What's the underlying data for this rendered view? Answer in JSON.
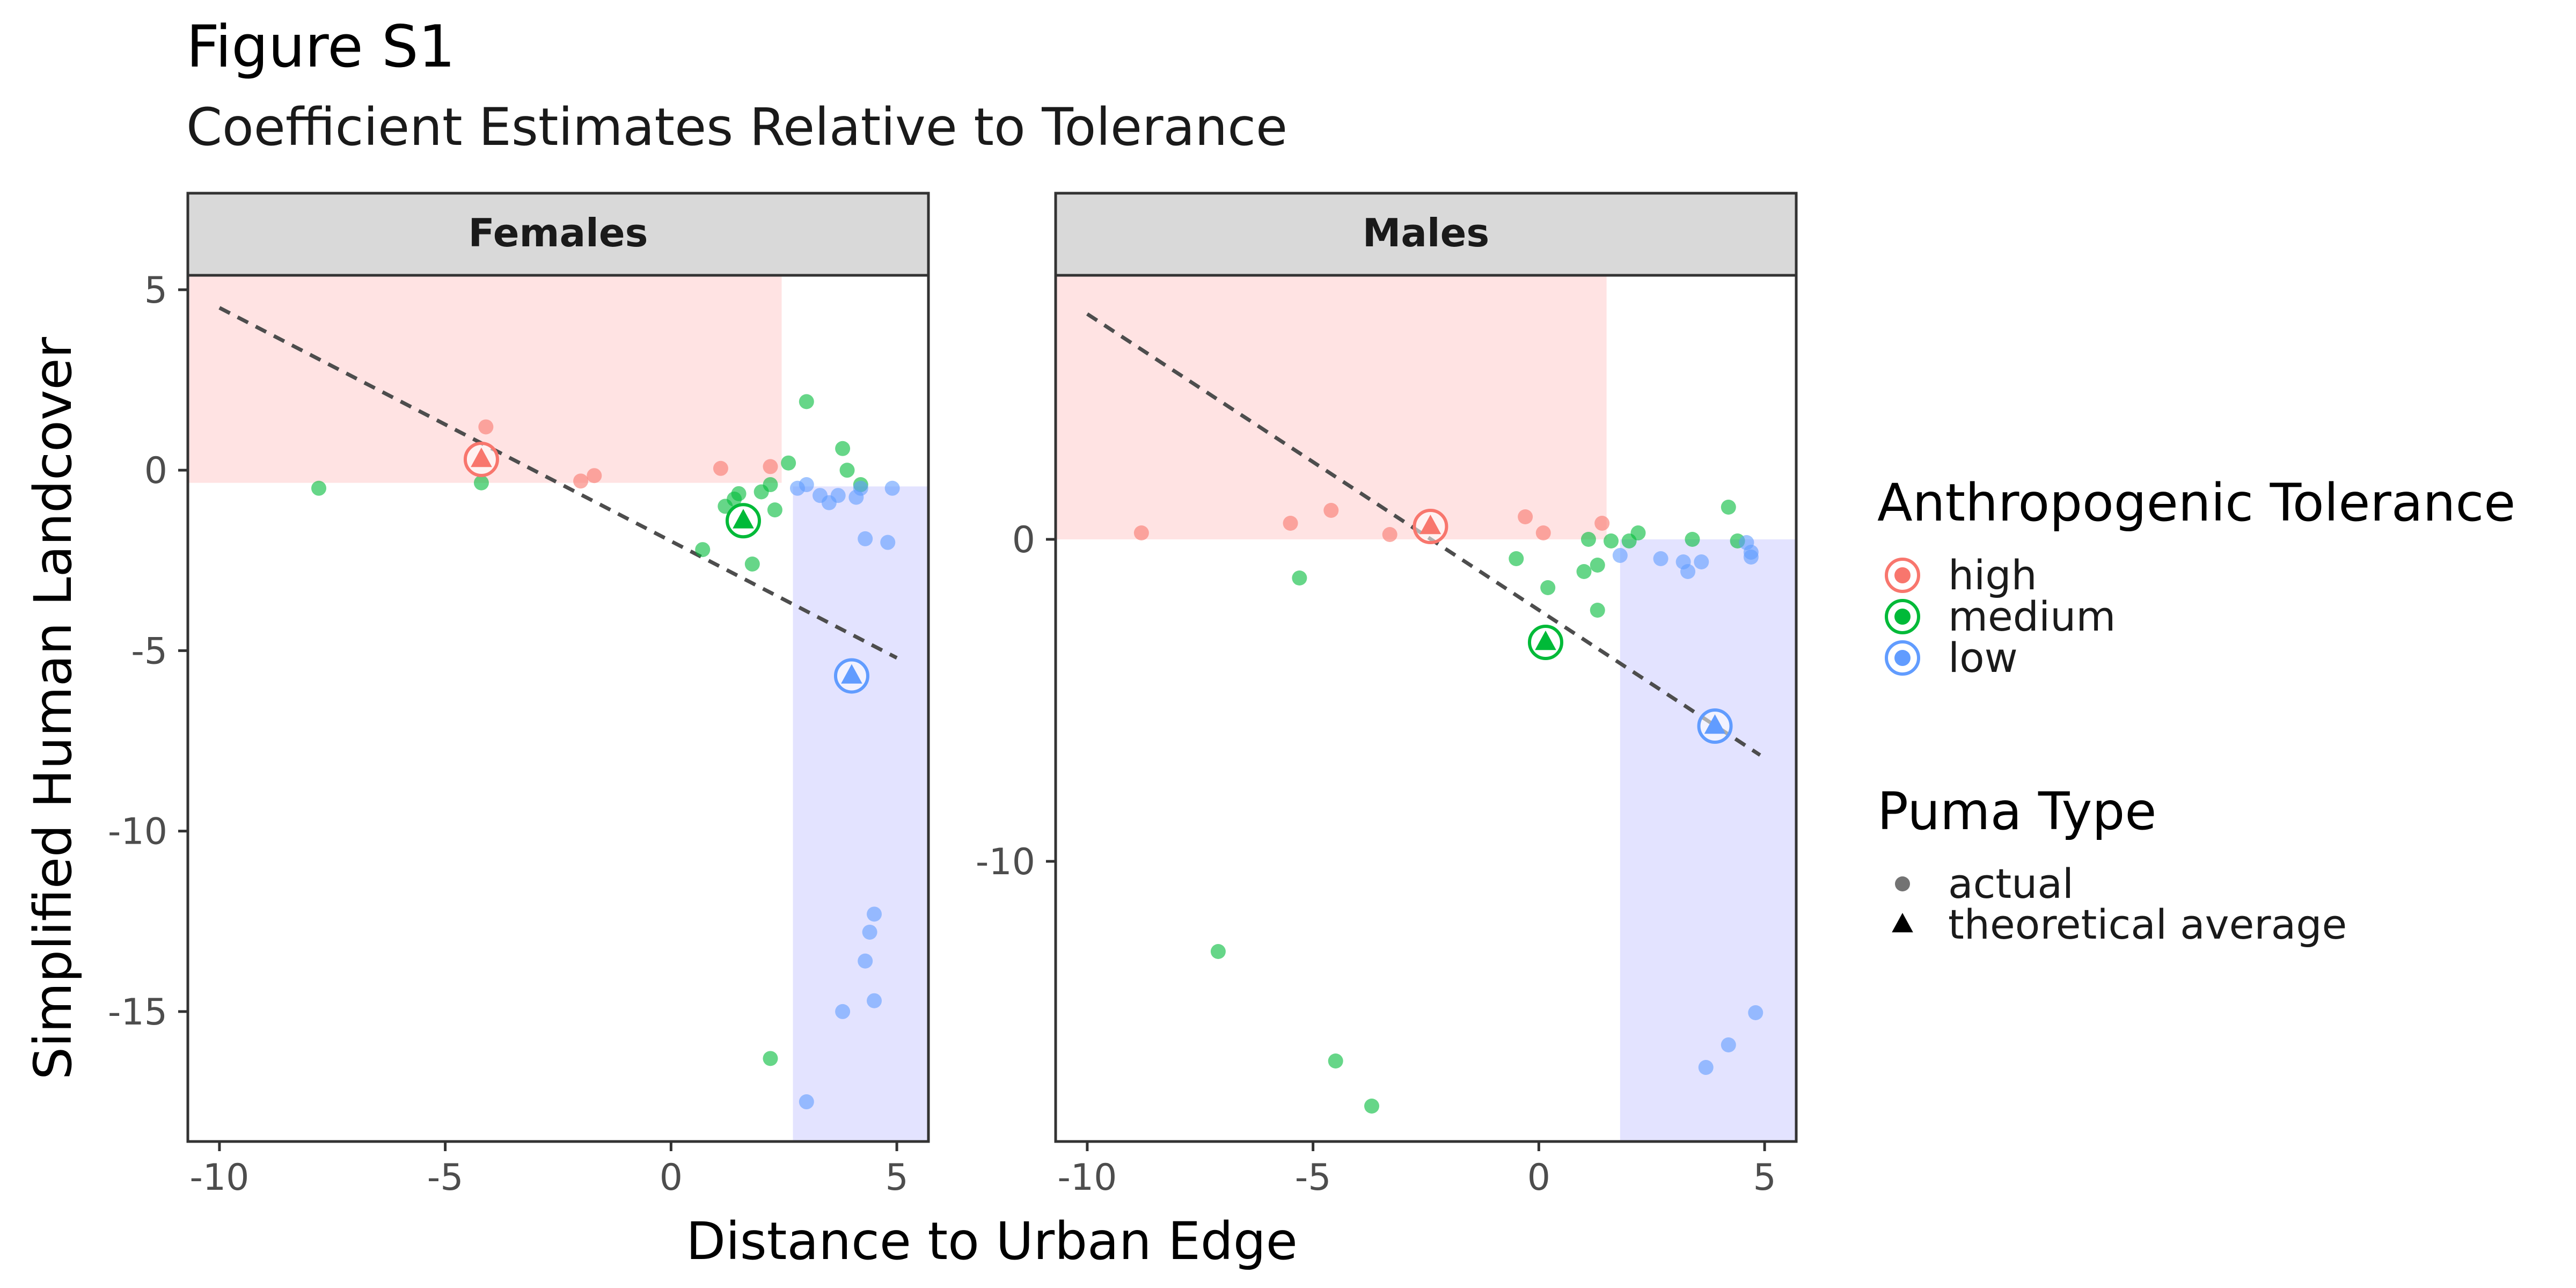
{
  "title": "Figure S1",
  "subtitle": "Coefficient Estimates Relative to Tolerance",
  "xlabel": "Distance to Urban Edge",
  "ylabel": "Simplified Human Landcover",
  "legend": {
    "tolerance_title": "Anthropogenic Tolerance",
    "tolerance_items": [
      "high",
      "medium",
      "low"
    ],
    "puma_title": "Puma Type",
    "puma_items": [
      "actual",
      "theoretical average"
    ]
  },
  "colors": {
    "high": "#F8766D",
    "medium": "#00BA38",
    "low": "#619CFF",
    "high_zone": "#FFE3E3",
    "low_zone": "#E3E3FF",
    "strip": "#D9D9D9",
    "trend": "#4D4D4D"
  },
  "chart_data": [
    {
      "type": "scatter",
      "panel": "Females",
      "xlim": [
        -10.7,
        5.7
      ],
      "ylim": [
        -18.6,
        5.4
      ],
      "xticks": [
        -10,
        -5,
        0,
        5
      ],
      "xtick_labels": [
        "-10",
        "-5",
        "0",
        "5"
      ],
      "yticks": [
        5,
        0,
        -5,
        -10,
        -15
      ],
      "ytick_labels": [
        "5",
        "0",
        "-5",
        "-10",
        "-15"
      ],
      "zones": {
        "high": {
          "x": [
            -10.7,
            2.45
          ],
          "y": [
            -0.35,
            5.4
          ]
        },
        "low": {
          "x": [
            2.7,
            5.7
          ],
          "y": [
            -18.6,
            -0.45
          ]
        }
      },
      "trend": {
        "x": [
          -10,
          5
        ],
        "y": [
          4.5,
          -5.2
        ]
      },
      "series": [
        {
          "name": "high",
          "points": [
            [
              -4.1,
              1.2
            ],
            [
              -2.0,
              -0.3
            ],
            [
              -1.7,
              -0.15
            ],
            [
              1.1,
              0.05
            ],
            [
              2.2,
              0.1
            ]
          ]
        },
        {
          "name": "medium",
          "points": [
            [
              -7.8,
              -0.5
            ],
            [
              -4.2,
              -0.35
            ],
            [
              0.7,
              -2.2
            ],
            [
              1.2,
              -1.0
            ],
            [
              1.4,
              -0.8
            ],
            [
              1.5,
              -0.65
            ],
            [
              1.8,
              -2.6
            ],
            [
              2.0,
              -0.6
            ],
            [
              2.2,
              -0.4
            ],
            [
              2.3,
              -1.1
            ],
            [
              2.6,
              0.2
            ],
            [
              3.0,
              1.9
            ],
            [
              3.8,
              0.6
            ],
            [
              3.9,
              0.0
            ],
            [
              4.2,
              -0.4
            ],
            [
              2.2,
              -16.3
            ]
          ]
        },
        {
          "name": "low",
          "points": [
            [
              2.8,
              -0.5
            ],
            [
              3.0,
              -0.4
            ],
            [
              3.3,
              -0.7
            ],
            [
              3.5,
              -0.9
            ],
            [
              3.7,
              -0.7
            ],
            [
              4.1,
              -0.75
            ],
            [
              4.2,
              -0.5
            ],
            [
              4.3,
              -1.9
            ],
            [
              4.8,
              -2.0
            ],
            [
              4.9,
              -0.5
            ],
            [
              4.5,
              -12.3
            ],
            [
              4.4,
              -12.8
            ],
            [
              4.3,
              -13.6
            ],
            [
              4.5,
              -14.7
            ],
            [
              3.8,
              -15.0
            ],
            [
              3.0,
              -17.5
            ]
          ]
        }
      ],
      "averages": [
        {
          "name": "high",
          "x": -4.2,
          "y": 0.3
        },
        {
          "name": "medium",
          "x": 1.6,
          "y": -1.4
        },
        {
          "name": "low",
          "x": 4.0,
          "y": -5.7
        }
      ]
    },
    {
      "type": "scatter",
      "panel": "Males",
      "xlim": [
        -10.7,
        5.7
      ],
      "ylim": [
        -18.7,
        8.2
      ],
      "xticks": [
        -10,
        -5,
        0,
        5
      ],
      "xtick_labels": [
        "-10",
        "-5",
        "0",
        "5"
      ],
      "yticks": [
        0,
        -10
      ],
      "ytick_labels": [
        "0",
        "-10"
      ],
      "zones": {
        "high": {
          "x": [
            -10.7,
            1.5
          ],
          "y": [
            0,
            8.2
          ]
        },
        "low": {
          "x": [
            1.8,
            5.7
          ],
          "y": [
            -18.7,
            0
          ]
        }
      },
      "trend": {
        "x": [
          -10,
          4.9
        ],
        "y": [
          7.0,
          -6.7
        ]
      },
      "series": [
        {
          "name": "high",
          "points": [
            [
              -8.8,
              0.2
            ],
            [
              -5.5,
              0.5
            ],
            [
              -4.6,
              0.9
            ],
            [
              -3.3,
              0.15
            ],
            [
              -0.3,
              0.7
            ],
            [
              0.1,
              0.2
            ],
            [
              1.4,
              0.5
            ]
          ]
        },
        {
          "name": "medium",
          "points": [
            [
              -5.3,
              -1.2
            ],
            [
              -0.5,
              -0.6
            ],
            [
              0.2,
              -1.5
            ],
            [
              1.0,
              -1.0
            ],
            [
              1.1,
              0.0
            ],
            [
              1.3,
              -0.8
            ],
            [
              1.3,
              -2.2
            ],
            [
              1.6,
              -0.05
            ],
            [
              2.0,
              -0.05
            ],
            [
              2.2,
              0.2
            ],
            [
              3.4,
              0.0
            ],
            [
              4.2,
              1.0
            ],
            [
              4.4,
              -0.05
            ],
            [
              -7.1,
              -12.8
            ],
            [
              -4.5,
              -16.2
            ],
            [
              -3.7,
              -17.6
            ]
          ]
        },
        {
          "name": "low",
          "points": [
            [
              1.8,
              -0.5
            ],
            [
              2.7,
              -0.6
            ],
            [
              3.2,
              -0.7
            ],
            [
              3.3,
              -1.0
            ],
            [
              3.6,
              -0.7
            ],
            [
              4.6,
              -0.1
            ],
            [
              4.7,
              -0.4
            ],
            [
              4.7,
              -0.55
            ],
            [
              3.7,
              -16.4
            ],
            [
              4.2,
              -15.7
            ],
            [
              4.8,
              -14.7
            ]
          ]
        }
      ],
      "averages": [
        {
          "name": "high",
          "x": -2.4,
          "y": 0.4
        },
        {
          "name": "medium",
          "x": 0.15,
          "y": -3.2
        },
        {
          "name": "low",
          "x": 3.9,
          "y": -5.8
        }
      ]
    }
  ]
}
